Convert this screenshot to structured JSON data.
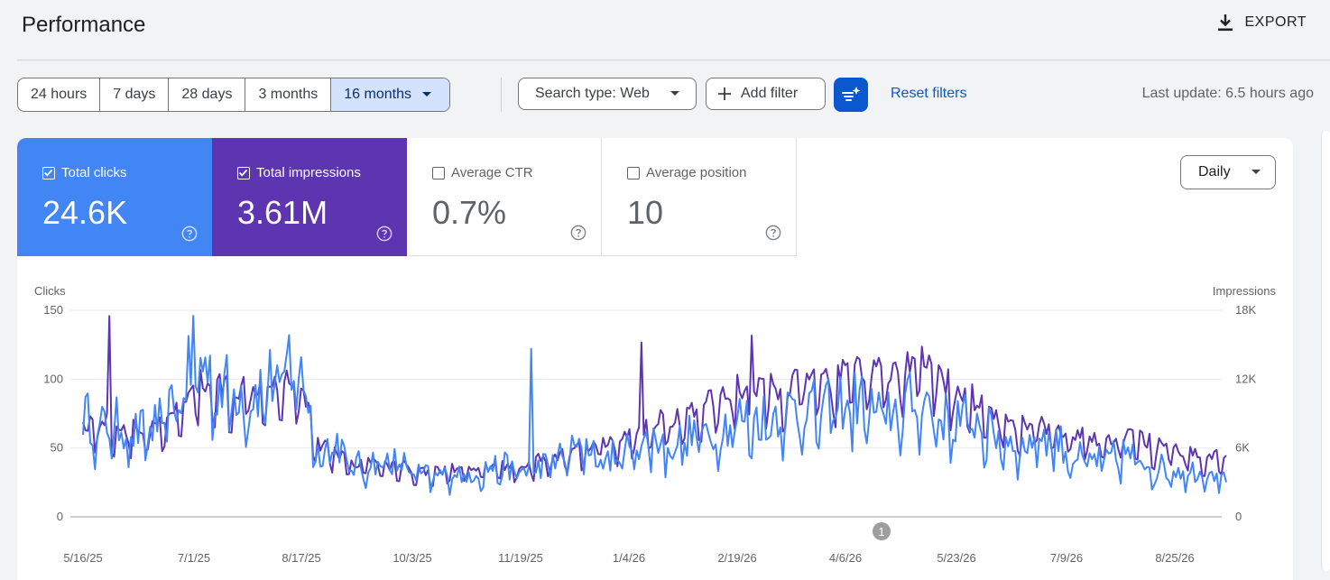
{
  "header": {
    "title": "Performance",
    "export_label": "EXPORT",
    "export_icon": "download-icon"
  },
  "toolbar": {
    "ranges": [
      {
        "label": "24 hours",
        "active": false
      },
      {
        "label": "7 days",
        "active": false
      },
      {
        "label": "28 days",
        "active": false
      },
      {
        "label": "3 months",
        "active": false
      },
      {
        "label": "16 months",
        "active": true
      }
    ],
    "search_type": "Search type: Web",
    "add_filter": "Add filter",
    "reset_filters": "Reset filters",
    "last_update": "Last update: 6.5 hours ago"
  },
  "metrics": {
    "clicks": {
      "label": "Total clicks",
      "value": "24.6K",
      "checked": true,
      "color": "#4285f4"
    },
    "impressions": {
      "label": "Total impressions",
      "value": "3.61M",
      "checked": true,
      "color": "#5e35b1"
    },
    "ctr": {
      "label": "Average CTR",
      "value": "0.7%",
      "checked": false
    },
    "position": {
      "label": "Average position",
      "value": "10",
      "checked": false
    }
  },
  "granularity": "Daily",
  "chart_data": {
    "type": "line",
    "left_axis": {
      "label": "Clicks",
      "ticks": [
        "0",
        "50",
        "100",
        "150"
      ],
      "range": [
        0,
        150
      ]
    },
    "right_axis": {
      "label": "Impressions",
      "ticks": [
        "0",
        "6K",
        "12K",
        "18K"
      ],
      "range": [
        0,
        18000
      ]
    },
    "x_ticks": [
      "5/16/25",
      "7/1/25",
      "8/17/25",
      "10/3/25",
      "11/19/25",
      "1/4/26",
      "2/19/26",
      "4/6/26",
      "5/23/26",
      "7/9/26",
      "8/25/26"
    ],
    "grid": true,
    "annotation": {
      "label": "1",
      "x": "4/18/26"
    },
    "series": [
      {
        "name": "Clicks",
        "axis": "left",
        "color": "#4285f4",
        "weekly_avg": [
          72,
          62,
          66,
          58,
          62,
          68,
          95,
          110,
          92,
          90,
          85,
          95,
          100,
          108,
          44,
          55,
          35,
          38,
          40,
          38,
          30,
          28,
          32,
          30,
          34,
          36,
          32,
          34,
          40,
          45,
          52,
          40,
          44,
          52,
          55,
          50,
          56,
          60,
          62,
          70,
          68,
          72,
          75,
          80,
          72,
          80,
          82,
          76,
          72,
          78,
          85,
          70,
          68,
          70,
          60,
          55,
          50,
          58,
          55,
          42,
          40,
          40,
          45,
          40,
          35,
          34,
          32,
          34,
          30,
          28,
          25,
          24,
          25
        ],
        "peaks": [
          {
            "x": "7/1/25",
            "value": 146
          },
          {
            "x": "8/10/25",
            "value": 132
          },
          {
            "x": "11/19/25",
            "value": 122
          }
        ]
      },
      {
        "name": "Impressions",
        "axis": "right",
        "color": "#5e35b1",
        "weekly_avg": [
          7800,
          8100,
          7500,
          7300,
          7400,
          7700,
          9700,
          11100,
          11000,
          10700,
          10900,
          11500,
          11700,
          11400,
          6000,
          5600,
          4500,
          4700,
          4300,
          4300,
          3900,
          3800,
          4100,
          3800,
          4100,
          4300,
          4200,
          4700,
          5000,
          5300,
          6000,
          6300,
          6600,
          7100,
          7900,
          8300,
          8400,
          9200,
          10300,
          10700,
          10500,
          10800,
          11000,
          11300,
          11200,
          11500,
          12700,
          12200,
          11800,
          12500,
          12800,
          11900,
          10500,
          10000,
          9000,
          8000,
          7700,
          7800,
          7000,
          6600,
          6800,
          6300,
          6700,
          6600,
          6000,
          5500,
          5300,
          5300,
          5000,
          5100,
          4800,
          4800,
          4700
        ],
        "peaks": [
          {
            "x": "5/27/25",
            "value": 17500
          },
          {
            "x": "1/4/26",
            "value": 15200
          },
          {
            "x": "2/19/26",
            "value": 15800
          }
        ]
      }
    ]
  }
}
